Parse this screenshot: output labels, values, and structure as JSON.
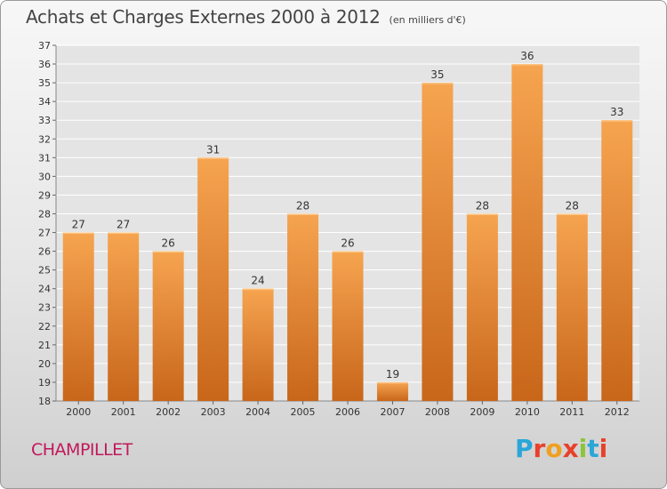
{
  "header": {
    "title": "Achats et Charges Externes 2000 à 2012",
    "subtitle": "(en milliers d'€)"
  },
  "footer": {
    "commune": "CHAMPILLET",
    "brand": "Proxiti",
    "brand_colors": [
      "#2aa6d8",
      "#e8402a",
      "#f0a020",
      "#e8402a",
      "#8cc43c",
      "#2aa6d8",
      "#e8402a"
    ]
  },
  "chart_data": {
    "type": "bar",
    "categories": [
      "2000",
      "2001",
      "2002",
      "2003",
      "2004",
      "2005",
      "2006",
      "2007",
      "2008",
      "2009",
      "2010",
      "2011",
      "2012"
    ],
    "values": [
      27,
      27,
      26,
      31,
      24,
      28,
      26,
      19,
      35,
      28,
      36,
      28,
      33
    ],
    "data_labels": [
      "27",
      "27",
      "26",
      "31",
      "24",
      "28",
      "26",
      "19",
      "35",
      "28",
      "36",
      "28",
      "33"
    ],
    "yticks": [
      "18",
      "19",
      "20",
      "21",
      "22",
      "23",
      "24",
      "25",
      "26",
      "27",
      "28",
      "29",
      "30",
      "31",
      "32",
      "33",
      "34",
      "35",
      "36",
      "37"
    ],
    "ylim": [
      18,
      37
    ],
    "grid": true,
    "bar_color_top": "#f6a450",
    "bar_color_bottom": "#c8661a"
  }
}
